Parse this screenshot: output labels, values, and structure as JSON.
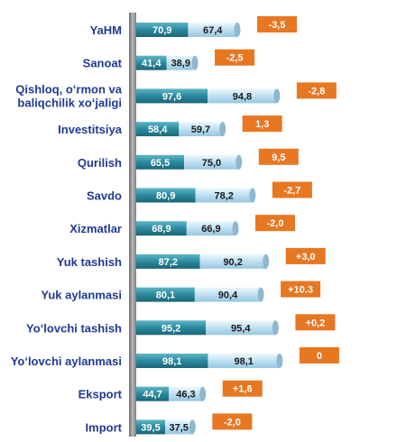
{
  "chart_data": {
    "type": "bar",
    "orientation": "horizontal",
    "categories": [
      "YaHM",
      "Sanoat",
      "Qishloq, oʻrmon va baliqchilik xoʻjaligi",
      "Investitsiya",
      "Qurilish",
      "Savdo",
      "Xizmatlar",
      "Yuk tashish",
      "Yuk aylanmasi",
      "Yoʻlovchi tashish",
      "Yoʻlovchi aylanmasi",
      "Eksport",
      "Import"
    ],
    "category_lines": [
      [
        "YaHM"
      ],
      [
        "Sanoat"
      ],
      [
        "Qishloq, oʻrmon va",
        "baliqchilik xoʻjaligi"
      ],
      [
        "Investitsiya"
      ],
      [
        "Qurilish"
      ],
      [
        "Savdo"
      ],
      [
        "Xizmatlar"
      ],
      [
        "Yuk tashish"
      ],
      [
        "Yuk aylanmasi"
      ],
      [
        "Yoʻlovchi tashish"
      ],
      [
        "Yoʻlovchi aylanmasi"
      ],
      [
        "Eksport"
      ],
      [
        "Import"
      ]
    ],
    "series": [
      {
        "values": [
          70.9,
          41.4,
          97.6,
          58.4,
          65.5,
          80.9,
          68.9,
          87.2,
          80.1,
          95.2,
          98.1,
          44.7,
          39.5
        ],
        "labels": [
          "70,9",
          "41,4",
          "97,6",
          "58,4",
          "65,5",
          "80,9",
          "68,9",
          "87,2",
          "80,1",
          "95,2",
          "98,1",
          "44,7",
          "39,5"
        ],
        "color": "#2a8a9e"
      },
      {
        "values": [
          67.4,
          38.9,
          94.8,
          59.7,
          75.0,
          78.2,
          66.9,
          90.2,
          90.4,
          95.4,
          98.1,
          46.3,
          37.5
        ],
        "labels": [
          "67,4",
          "38,9",
          "94,8",
          "59,7",
          "75,0",
          "78,2",
          "66,9",
          "90,2",
          "90,4",
          "95,4",
          "98,1",
          "46,3",
          "37,5"
        ],
        "color": "#bfe0f2"
      }
    ],
    "changes": {
      "values": [
        -3.5,
        -2.5,
        -2.8,
        1.3,
        9.5,
        -2.7,
        -2.0,
        3.0,
        10.3,
        0.2,
        0,
        1.6,
        -2.0
      ],
      "labels": [
        "-3,5",
        "-2,5",
        "-2,8",
        "1,3",
        "9,5",
        "-2,7",
        "-2,0",
        "+3,0",
        "+10.3",
        "+0,2",
        "0",
        "+1,6",
        "-2,0"
      ],
      "color": "#e87722"
    },
    "colors": {
      "label_text": "#1f3a93",
      "axis_bar": "#9a9a9a"
    },
    "grid": false,
    "legend": "none"
  }
}
